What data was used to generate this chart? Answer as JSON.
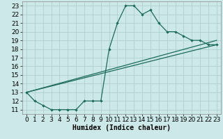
{
  "xlabel": "Humidex (Indice chaleur)",
  "bg_color": "#cce8e8",
  "grid_color": "#aacccc",
  "line_color": "#1a6b5a",
  "xlim": [
    -0.5,
    23.5
  ],
  "ylim": [
    10.5,
    23.5
  ],
  "xticks": [
    0,
    1,
    2,
    3,
    4,
    5,
    6,
    7,
    8,
    9,
    10,
    11,
    12,
    13,
    14,
    15,
    16,
    17,
    18,
    19,
    20,
    21,
    22,
    23
  ],
  "yticks": [
    11,
    12,
    13,
    14,
    15,
    16,
    17,
    18,
    19,
    20,
    21,
    22,
    23
  ],
  "line1_x": [
    0,
    1,
    2,
    3,
    4,
    5,
    6,
    7,
    8,
    9,
    10,
    11,
    12,
    13,
    14,
    15,
    16,
    17,
    18,
    19,
    20,
    21,
    22,
    23
  ],
  "line1_y": [
    13,
    12,
    11.5,
    11,
    11,
    11,
    11,
    12,
    12,
    12,
    18,
    21,
    23,
    23,
    22,
    22.5,
    21,
    20,
    20,
    19.5,
    19,
    19,
    18.5,
    18.5
  ],
  "line2_x": [
    0,
    23
  ],
  "line2_y": [
    13,
    19
  ],
  "line3_x": [
    0,
    23
  ],
  "line3_y": [
    13,
    18.5
  ],
  "fontsize_label": 7,
  "fontsize_tick": 6.5
}
